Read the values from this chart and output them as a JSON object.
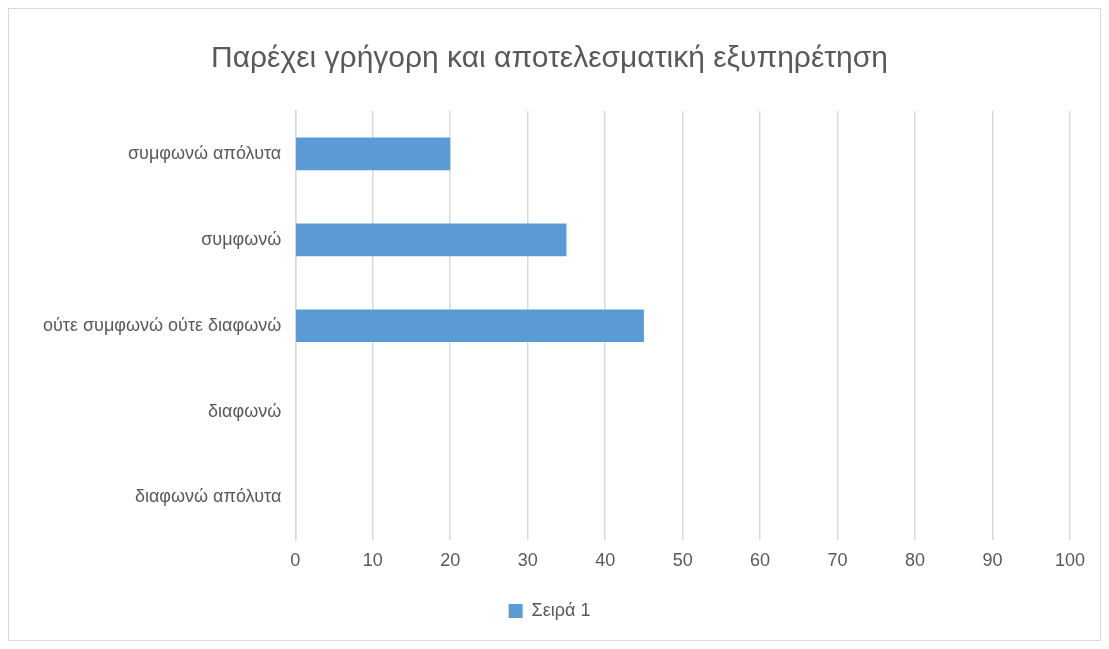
{
  "chart_data": {
    "type": "bar",
    "orientation": "horizontal",
    "title": "Παρέχει γρήγορη και αποτελεσματική εξυπηρέτηση",
    "categories": [
      "συμφωνώ απόλυτα",
      "συμφωνώ",
      "ούτε συμφωνώ ούτε διαφωνώ",
      "διαφωνώ",
      "διαφωνώ απόλυτα"
    ],
    "series": [
      {
        "name": "Σειρά 1",
        "color": "#5b9bd5",
        "values": [
          20,
          35,
          45,
          0,
          0
        ]
      }
    ],
    "xlim": [
      0,
      100
    ],
    "xticks": [
      0,
      10,
      20,
      30,
      40,
      50,
      60,
      70,
      80,
      90,
      100
    ],
    "grid": "x",
    "legend": "bottom"
  }
}
